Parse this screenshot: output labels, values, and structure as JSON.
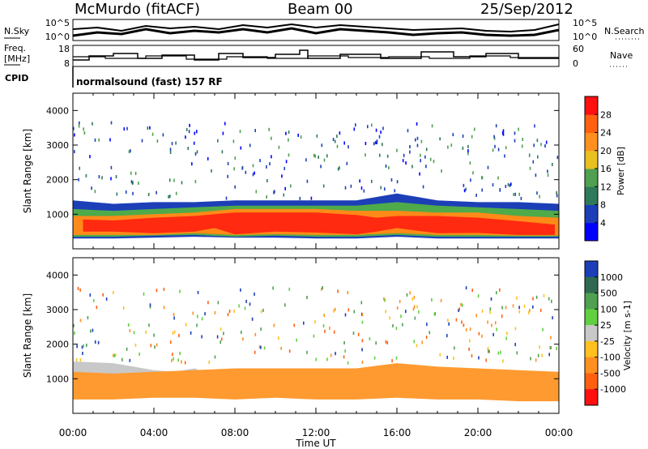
{
  "header": {
    "station": "McMurdo (fitACF)",
    "beam": "Beam 00",
    "date": "25/Sep/2012"
  },
  "top_panel": {
    "left_labels": {
      "nsky": "N.Sky",
      "freq": "Freq.",
      "mhz": "[MHz]",
      "cpid": "CPID"
    },
    "right_labels": {
      "nsearch": "N.Search",
      "nave": "Nave"
    },
    "nsky_ticks": [
      "10^5",
      "10^0"
    ],
    "nsearch_ticks": [
      "10^5",
      "10^0"
    ],
    "freq_ticks": [
      "18",
      "8"
    ],
    "nave_ticks": [
      "60",
      "0"
    ],
    "cpid_text": "normalsound (fast) 157 RF"
  },
  "chart_data": [
    {
      "type": "heatmap",
      "title": "",
      "xlabel": "Time UT",
      "ylabel": "Slant Range [km]",
      "x_ticks": [
        "00:00",
        "04:00",
        "08:00",
        "12:00",
        "16:00",
        "20:00",
        "00:00"
      ],
      "y_ticks": [
        1000,
        2000,
        3000,
        4000
      ],
      "colorbar": {
        "label": "Power [dB]",
        "ticks": [
          4,
          8,
          12,
          16,
          20,
          24,
          28
        ],
        "colors": [
          "#0000ff",
          "#1c3fb8",
          "#2f7a5a",
          "#4fa050",
          "#e8c020",
          "#ff9020",
          "#ff6010",
          "#ff1010"
        ]
      },
      "bands": [
        {
          "name": "bulk_hi",
          "color": "#ff2a10",
          "x": [
            0.5,
            2,
            4,
            6,
            7,
            8,
            10,
            12,
            14,
            15,
            16,
            18,
            20,
            22,
            23.8
          ],
          "y_lo": [
            500,
            500,
            450,
            500,
            600,
            420,
            500,
            470,
            420,
            500,
            600,
            450,
            460,
            400,
            400
          ],
          "y_hi": [
            850,
            820,
            900,
            950,
            1000,
            1050,
            1050,
            1050,
            980,
            900,
            950,
            950,
            900,
            800,
            700
          ]
        },
        {
          "name": "ring_mid",
          "color": "#ff8a18",
          "x": [
            0,
            2,
            4,
            6,
            8,
            10,
            12,
            14,
            16,
            18,
            20,
            22,
            24
          ],
          "y_lo": [
            400,
            400,
            400,
            450,
            400,
            420,
            400,
            400,
            450,
            400,
            400,
            380,
            380
          ],
          "y_hi": [
            950,
            950,
            1000,
            1050,
            1150,
            1150,
            1150,
            1100,
            1100,
            1050,
            1050,
            950,
            900
          ]
        },
        {
          "name": "ring_green",
          "color": "#4faa4a",
          "x": [
            0,
            2,
            4,
            6,
            8,
            10,
            12,
            14,
            16,
            18,
            20,
            22,
            24
          ],
          "y_lo": [
            350,
            350,
            380,
            400,
            350,
            380,
            350,
            350,
            400,
            350,
            350,
            350,
            350
          ],
          "y_hi": [
            1150,
            1100,
            1150,
            1200,
            1250,
            1250,
            1250,
            1250,
            1350,
            1250,
            1200,
            1150,
            1100
          ]
        },
        {
          "name": "ring_blue",
          "color": "#1c3fb8",
          "x": [
            0,
            2,
            4,
            6,
            8,
            10,
            12,
            14,
            16,
            18,
            20,
            22,
            24
          ],
          "y_lo": [
            300,
            300,
            320,
            350,
            320,
            320,
            300,
            300,
            350,
            300,
            300,
            300,
            300
          ],
          "y_hi": [
            1400,
            1300,
            1350,
            1350,
            1400,
            1400,
            1400,
            1400,
            1600,
            1400,
            1350,
            1350,
            1300
          ]
        }
      ]
    },
    {
      "type": "heatmap",
      "title": "",
      "xlabel": "Time UT",
      "ylabel": "Slant Range [km]",
      "x_ticks": [
        "00:00",
        "04:00",
        "08:00",
        "12:00",
        "16:00",
        "20:00",
        "00:00"
      ],
      "y_ticks": [
        1000,
        2000,
        3000,
        4000
      ],
      "colorbar": {
        "label": "Velocity [m s-1]",
        "ticks": [
          1000,
          500,
          100,
          25,
          -25,
          -100,
          -500,
          -1000
        ],
        "colors": [
          "#1c3fb8",
          "#2f6a50",
          "#4fa050",
          "#60d040",
          "#c8c8c8",
          "#ffc020",
          "#ff9020",
          "#ff6010",
          "#ff1010"
        ]
      },
      "bands": [
        {
          "name": "bulk",
          "color": "#ff9a30",
          "x": [
            0,
            2,
            4,
            6,
            8,
            10,
            12,
            14,
            16,
            18,
            20,
            22,
            24
          ],
          "y_lo": [
            400,
            400,
            450,
            450,
            400,
            450,
            400,
            400,
            450,
            400,
            400,
            350,
            350
          ],
          "y_hi": [
            1200,
            1150,
            1200,
            1250,
            1300,
            1300,
            1300,
            1300,
            1450,
            1350,
            1300,
            1250,
            1200
          ]
        },
        {
          "name": "green",
          "color": "#4fa050",
          "x": [
            0,
            2,
            4,
            6,
            8,
            10,
            12,
            14,
            16,
            18,
            20,
            22,
            24
          ],
          "y_lo": [
            450,
            450,
            500,
            500,
            450,
            500,
            500,
            500,
            500,
            450,
            450,
            400,
            400
          ],
          "y_hi": [
            1000,
            1000,
            1050,
            1100,
            1050,
            1000,
            950,
            1000,
            1000,
            1050,
            1000,
            950,
            900
          ]
        },
        {
          "name": "grey",
          "color": "#c8c8c8",
          "x": [
            0,
            2,
            3,
            4,
            5,
            6,
            6.5,
            7
          ],
          "y_lo": [
            900,
            950,
            950,
            900,
            850,
            700,
            800,
            900
          ],
          "y_hi": [
            1500,
            1450,
            1350,
            1250,
            1200,
            1300,
            1200,
            1100
          ]
        }
      ]
    }
  ]
}
